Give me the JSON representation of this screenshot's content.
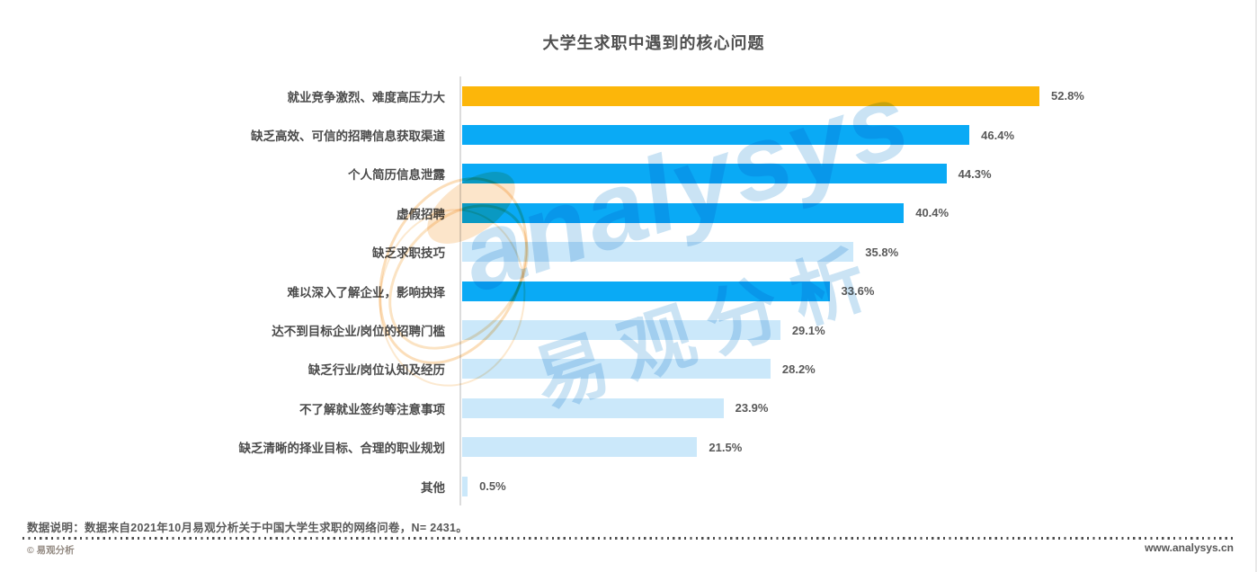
{
  "chart_data": {
    "type": "bar",
    "orientation": "horizontal",
    "title": "大学生求职中遇到的核心问题",
    "categories": [
      "就业竞争激烈、难度高压力大",
      "缺乏高效、可信的招聘信息获取渠道",
      "个人简历信息泄露",
      "虚假招聘",
      "缺乏求职技巧",
      "难以深入了解企业，影响抉择",
      "达不到目标企业/岗位的招聘门槛",
      "缺乏行业/岗位认知及经历",
      "不了解就业签约等注意事项",
      "缺乏清晰的择业目标、合理的职业规划",
      "其他"
    ],
    "values": [
      52.8,
      46.4,
      44.3,
      40.4,
      35.8,
      33.6,
      29.1,
      28.2,
      23.9,
      21.5,
      0.5
    ],
    "value_labels": [
      "52.8%",
      "46.4%",
      "44.3%",
      "40.4%",
      "35.8%",
      "33.6%",
      "29.1%",
      "28.2%",
      "23.9%",
      "21.5%",
      "0.5%"
    ],
    "bar_colors": [
      "#FCB60A",
      "#0AAAF5",
      "#0AAAF5",
      "#0AAAF5",
      "#CBE8FA",
      "#0AAAF5",
      "#CBE8FA",
      "#CBE8FA",
      "#CBE8FA",
      "#CBE8FA",
      "#CBE8FA"
    ],
    "xlabel": "",
    "ylabel": "",
    "xlim": [
      0,
      69.7
    ],
    "grid": false,
    "legend": false,
    "highlight_color": "#FCB60A",
    "primary_color": "#0AAAF5",
    "secondary_color": "#CBE8FA",
    "axis_line_color": "#DCDCDC"
  },
  "watermark": {
    "brand_latin": "analysys",
    "brand_cn": "易观分析"
  },
  "footnote": "数据说明：数据来自2021年10月易观分析关于中国大学生求职的网络问卷，N= 2431。",
  "footer": {
    "copyright": "© 易观分析",
    "website": "www.analysys.cn"
  }
}
